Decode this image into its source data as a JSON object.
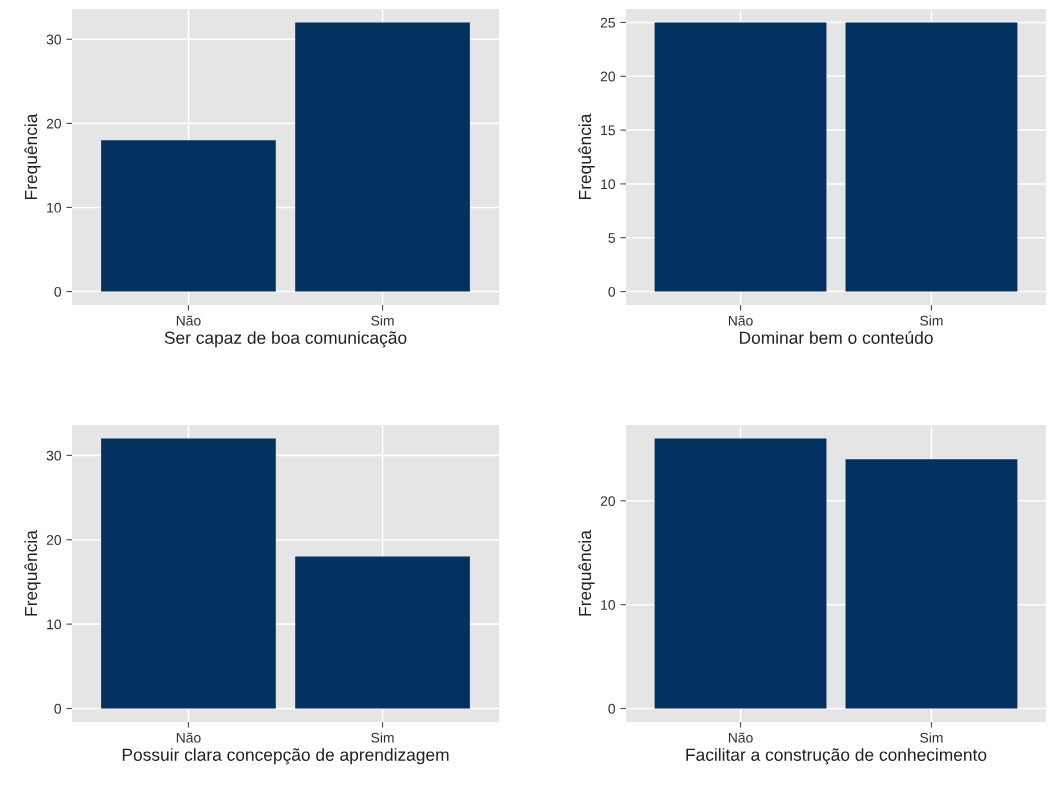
{
  "chart_data": [
    {
      "type": "bar",
      "categories": [
        "Não",
        "Sim"
      ],
      "values": [
        18,
        32
      ],
      "color": "#033160",
      "xlabel": "Ser capaz de boa comunicação",
      "ylabel": "Frequência",
      "ylim": [
        -1.6,
        33.6
      ],
      "yticks": [
        0,
        10,
        20,
        30
      ],
      "grid": true
    },
    {
      "type": "bar",
      "categories": [
        "Não",
        "Sim"
      ],
      "values": [
        25,
        25
      ],
      "color": "#033160",
      "xlabel": "Dominar bem o conteúdo",
      "ylabel": "Frequência",
      "ylim": [
        -1.25,
        26.25
      ],
      "yticks": [
        0,
        5,
        10,
        15,
        20,
        25
      ],
      "grid": true
    },
    {
      "type": "bar",
      "categories": [
        "Não",
        "Sim"
      ],
      "values": [
        32,
        18
      ],
      "color": "#033160",
      "xlabel": "Possuir clara concepção de aprendizagem",
      "ylabel": "Frequência",
      "ylim": [
        -1.6,
        33.6
      ],
      "yticks": [
        0,
        10,
        20,
        30
      ],
      "grid": true
    },
    {
      "type": "bar",
      "categories": [
        "Não",
        "Sim"
      ],
      "values": [
        26,
        24
      ],
      "color": "#033160",
      "xlabel": "Facilitar a construção de conhecimento",
      "ylabel": "Frequência",
      "ylim": [
        -1.3,
        27.3
      ],
      "yticks": [
        0,
        10,
        20
      ],
      "grid": true
    }
  ]
}
